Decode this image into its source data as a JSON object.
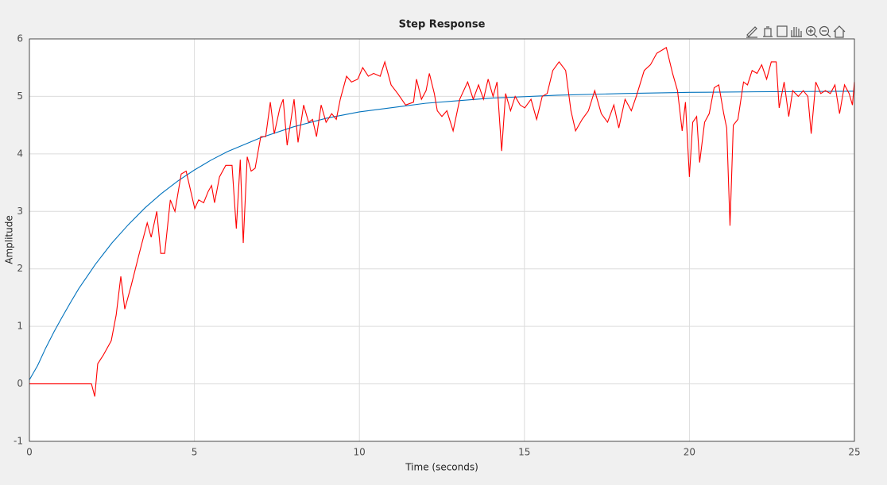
{
  "chart_data": {
    "type": "line",
    "title": "Step Response",
    "x_label": "Time (seconds)",
    "y_label": "Amplitude",
    "xlim": [
      0,
      25
    ],
    "ylim": [
      -1,
      6
    ],
    "xticks": [
      0,
      5,
      10,
      15,
      20,
      25
    ],
    "yticks": [
      -1,
      0,
      1,
      2,
      3,
      4,
      5,
      6
    ],
    "grid": true,
    "series": [
      {
        "color": "#0072bd",
        "x": [
          0,
          0.25,
          0.5,
          0.75,
          1,
          1.25,
          1.5,
          1.75,
          2,
          2.5,
          3,
          3.5,
          4,
          4.5,
          5,
          5.5,
          6,
          7,
          8,
          9,
          10,
          12,
          14,
          16,
          18,
          20,
          22,
          25
        ],
        "values": [
          0.07,
          0.32,
          0.63,
          0.91,
          1.17,
          1.42,
          1.66,
          1.87,
          2.08,
          2.45,
          2.77,
          3.06,
          3.31,
          3.53,
          3.72,
          3.89,
          4.04,
          4.28,
          4.47,
          4.62,
          4.73,
          4.88,
          4.97,
          5.02,
          5.05,
          5.07,
          5.08,
          5.09
        ]
      },
      {
        "color": "#ff0000",
        "x": [
          0,
          1.88,
          1.98,
          2.07,
          2.24,
          2.48,
          2.63,
          2.77,
          2.89,
          3.08,
          3.33,
          3.57,
          3.69,
          3.86,
          3.98,
          4.1,
          4.27,
          4.41,
          4.6,
          4.75,
          4.89,
          5.01,
          5.13,
          5.28,
          5.42,
          5.52,
          5.61,
          5.76,
          5.95,
          6.14,
          6.27,
          6.39,
          6.48,
          6.6,
          6.72,
          6.84,
          7.01,
          7.16,
          7.3,
          7.42,
          7.59,
          7.69,
          7.81,
          8.02,
          8.14,
          8.31,
          8.46,
          8.58,
          8.7,
          8.84,
          8.99,
          9.16,
          9.3,
          9.42,
          9.61,
          9.76,
          9.95,
          10.1,
          10.27,
          10.43,
          10.63,
          10.77,
          10.96,
          11.16,
          11.4,
          11.64,
          11.73,
          11.88,
          12.02,
          12.12,
          12.27,
          12.36,
          12.5,
          12.65,
          12.84,
          13.04,
          13.28,
          13.45,
          13.61,
          13.76,
          13.9,
          14.05,
          14.17,
          14.31,
          14.43,
          14.58,
          14.72,
          14.87,
          15.01,
          15.2,
          15.37,
          15.54,
          15.69,
          15.86,
          16.05,
          16.25,
          16.41,
          16.55,
          16.75,
          16.94,
          17.13,
          17.33,
          17.52,
          17.71,
          17.86,
          18.05,
          18.24,
          18.39,
          18.63,
          18.82,
          19.01,
          19.3,
          19.49,
          19.64,
          19.78,
          19.88,
          20.0,
          20.1,
          20.22,
          20.31,
          20.46,
          20.6,
          20.75,
          20.89,
          21.04,
          21.13,
          21.23,
          21.33,
          21.47,
          21.64,
          21.76,
          21.9,
          22.05,
          22.19,
          22.34,
          22.48,
          22.63,
          22.72,
          22.87,
          23.01,
          23.13,
          23.3,
          23.45,
          23.59,
          23.69,
          23.83,
          23.98,
          24.12,
          24.27,
          24.41,
          24.55,
          24.7,
          24.84,
          24.94,
          25
        ],
        "values": [
          0,
          0,
          -0.22,
          0.35,
          0.5,
          0.75,
          1.2,
          1.87,
          1.3,
          1.7,
          2.27,
          2.8,
          2.55,
          3.0,
          2.27,
          2.27,
          3.2,
          3.0,
          3.65,
          3.7,
          3.35,
          3.05,
          3.2,
          3.15,
          3.35,
          3.45,
          3.15,
          3.6,
          3.8,
          3.8,
          2.7,
          3.9,
          2.45,
          3.95,
          3.7,
          3.75,
          4.3,
          4.3,
          4.9,
          4.35,
          4.8,
          4.95,
          4.15,
          4.95,
          4.2,
          4.85,
          4.55,
          4.6,
          4.3,
          4.85,
          4.55,
          4.7,
          4.6,
          4.95,
          5.35,
          5.25,
          5.3,
          5.5,
          5.35,
          5.4,
          5.35,
          5.6,
          5.2,
          5.05,
          4.85,
          4.9,
          5.3,
          4.95,
          5.1,
          5.4,
          5.05,
          4.75,
          4.65,
          4.75,
          4.4,
          4.95,
          5.25,
          4.95,
          5.2,
          4.95,
          5.3,
          5.0,
          5.25,
          4.05,
          5.05,
          4.75,
          5.0,
          4.85,
          4.8,
          4.95,
          4.6,
          5.0,
          5.05,
          5.45,
          5.6,
          5.45,
          4.75,
          4.4,
          4.6,
          4.75,
          5.1,
          4.7,
          4.55,
          4.85,
          4.45,
          4.95,
          4.75,
          5.0,
          5.45,
          5.55,
          5.75,
          5.85,
          5.4,
          5.1,
          4.4,
          4.9,
          3.6,
          4.55,
          4.65,
          3.85,
          4.55,
          4.7,
          5.15,
          5.2,
          4.7,
          4.45,
          2.75,
          4.5,
          4.6,
          5.25,
          5.2,
          5.45,
          5.4,
          5.55,
          5.3,
          5.6,
          5.6,
          4.8,
          5.25,
          4.65,
          5.1,
          5.0,
          5.1,
          5.0,
          4.35,
          5.25,
          5.05,
          5.1,
          5.05,
          5.2,
          4.7,
          5.2,
          5.05,
          4.85,
          5.25
        ]
      }
    ]
  }
}
